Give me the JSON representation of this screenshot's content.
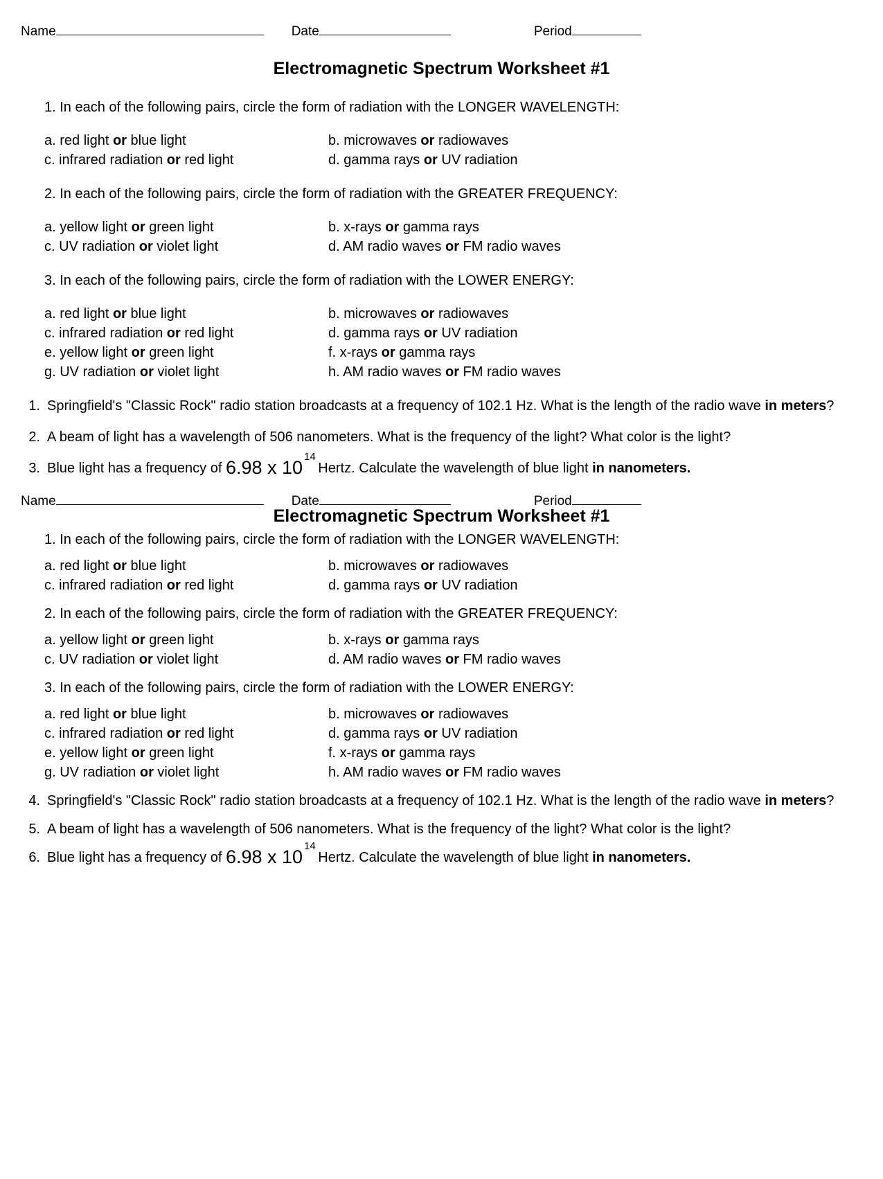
{
  "header": {
    "name_label": "Name",
    "date_label": "Date",
    "period_label": "Period"
  },
  "title": "Electromagnetic Spectrum Worksheet #1",
  "section1": {
    "prompt": "1. In each of the following pairs, circle the form of radiation with the LONGER WAVELENGTH:",
    "pairs": {
      "a_left": "a. red light",
      "a_or": "or",
      "a_right": "blue light",
      "b_left": "b. microwaves",
      "b_or": "or",
      "b_right": "radiowaves",
      "c_left": "c. infrared radiation",
      "c_or": "or",
      "c_right": "red light",
      "d_left": "d. gamma rays",
      "d_or": "or",
      "d_right": "UV radiation"
    }
  },
  "section2": {
    "prompt": "2. In each of the following pairs, circle the form of radiation with the GREATER FREQUENCY:",
    "pairs": {
      "a_left": "a. yellow light",
      "a_or": "or",
      "a_right": "green light",
      "b_left": "b. x-rays ",
      "b_or": "or",
      "b_right": "gamma rays",
      "c_left": "c. UV radiation",
      "c_or": "or",
      "c_right": "violet light",
      "d_left": "d. AM radio waves",
      "d_or": "or",
      "d_right": "FM radio waves"
    }
  },
  "section3": {
    "prompt": "3. In each of the following pairs, circle the form of radiation with the LOWER ENERGY:",
    "pairs": {
      "a_left": "a. red light",
      "a_or": "or",
      "a_right": "blue light",
      "b_left": "b. microwaves",
      "b_or": "or",
      "b_right": "radiowaves",
      "c_left": "c. infrared radiation",
      "c_or": "or",
      "c_right": "red light",
      "d_left": "d. gamma rays",
      "d_or": "or",
      "d_right": "UV radiation",
      "e_left": "e. yellow light",
      "e_or": "or",
      "e_right": "green light",
      "f_left": "f. x-rays ",
      "f_or": "or",
      "f_right": "gamma rays",
      "g_left": "g. UV radiation",
      "g_or": "or",
      "g_right": "violet light",
      "h_left": "h. AM radio waves",
      "h_or": "or",
      "h_right": "FM radio waves"
    }
  },
  "calc": {
    "q4_pre": "Springfield's \"Classic Rock\" radio station broadcasts at a frequency of 102.1 Hz. What is the length of the radio wave ",
    "q4_bold": "in meters",
    "q4_post": "?",
    "q5": "A beam of light has a wavelength of 506 nanometers. What is the frequency of the light? What color is the light?",
    "q6_pre": "Blue light has a frequency of ",
    "q6_freq_base": "6.98 x 10",
    "q6_freq_exp": "14",
    "q6_mid": " Hertz. Calculate the wavelength of blue light ",
    "q6_bold": "in nanometers.",
    "nums_a": {
      "n1": "1.",
      "n2": "2.",
      "n3": "3."
    },
    "nums_b": {
      "n1": "4.",
      "n2": "5.",
      "n3": "6."
    }
  }
}
